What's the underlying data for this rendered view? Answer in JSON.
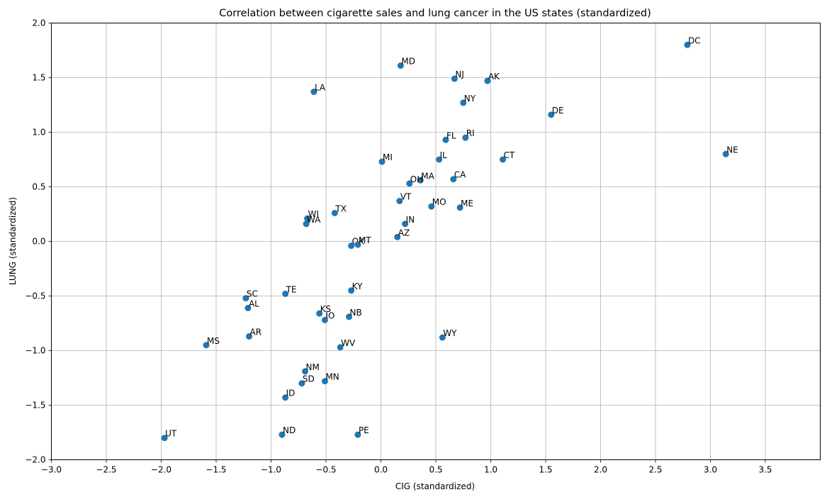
{
  "chart_data": {
    "type": "scatter",
    "title": "Correlation between cigarette sales and lung cancer in the US states (standardized)",
    "xlabel": "CIG (standardized)",
    "ylabel": "LUNG (standardized)",
    "xlim": [
      -3.0,
      4.0
    ],
    "ylim": [
      -2.0,
      2.0
    ],
    "xticks": [
      -3.0,
      -2.5,
      -2.0,
      -1.5,
      -1.0,
      -0.5,
      0.0,
      0.5,
      1.0,
      1.5,
      2.0,
      2.5,
      3.0,
      3.5
    ],
    "xtick_labels": [
      "−3.0",
      "−2.5",
      "−2.0",
      "−1.5",
      "−1.0",
      "−0.5",
      "0.0",
      "0.5",
      "1.0",
      "1.5",
      "2.0",
      "2.5",
      "3.0",
      "3.5"
    ],
    "yticks": [
      -2.0,
      -1.5,
      -1.0,
      -0.5,
      0.0,
      0.5,
      1.0,
      1.5,
      2.0
    ],
    "ytick_labels": [
      "−2.0",
      "−1.5",
      "−1.0",
      "−0.5",
      "0.0",
      "0.5",
      "1.0",
      "1.5",
      "2.0"
    ],
    "grid": true,
    "marker_color": "#1f77b4",
    "points": [
      {
        "label": "DC",
        "x": 2.79,
        "y": 1.8
      },
      {
        "label": "NE",
        "x": 3.14,
        "y": 0.8
      },
      {
        "label": "MD",
        "x": 0.18,
        "y": 1.61
      },
      {
        "label": "NJ",
        "x": 0.67,
        "y": 1.49
      },
      {
        "label": "AK",
        "x": 0.97,
        "y": 1.47
      },
      {
        "label": "LA",
        "x": -0.61,
        "y": 1.37
      },
      {
        "label": "NY",
        "x": 0.75,
        "y": 1.27
      },
      {
        "label": "DE",
        "x": 1.55,
        "y": 1.16
      },
      {
        "label": "FL",
        "x": 0.59,
        "y": 0.93
      },
      {
        "label": "RI",
        "x": 0.77,
        "y": 0.95
      },
      {
        "label": "CT",
        "x": 1.11,
        "y": 0.75
      },
      {
        "label": "MI",
        "x": 0.01,
        "y": 0.73
      },
      {
        "label": "IL",
        "x": 0.53,
        "y": 0.75
      },
      {
        "label": "MA",
        "x": 0.36,
        "y": 0.56
      },
      {
        "label": "CA",
        "x": 0.66,
        "y": 0.57
      },
      {
        "label": "OH",
        "x": 0.26,
        "y": 0.53
      },
      {
        "label": "VT",
        "x": 0.17,
        "y": 0.37
      },
      {
        "label": "MO",
        "x": 0.46,
        "y": 0.32
      },
      {
        "label": "ME",
        "x": 0.72,
        "y": 0.31
      },
      {
        "label": "TX",
        "x": -0.42,
        "y": 0.26
      },
      {
        "label": "WI",
        "x": -0.67,
        "y": 0.21
      },
      {
        "label": "WA",
        "x": -0.68,
        "y": 0.16
      },
      {
        "label": "IN",
        "x": 0.22,
        "y": 0.16
      },
      {
        "label": "AZ",
        "x": 0.15,
        "y": 0.04
      },
      {
        "label": "OK",
        "x": -0.27,
        "y": -0.04
      },
      {
        "label": "MT",
        "x": -0.21,
        "y": -0.03
      },
      {
        "label": "KY",
        "x": -0.27,
        "y": -0.45
      },
      {
        "label": "TE",
        "x": -0.87,
        "y": -0.48
      },
      {
        "label": "SC",
        "x": -1.23,
        "y": -0.52
      },
      {
        "label": "AL",
        "x": -1.21,
        "y": -0.61
      },
      {
        "label": "KS",
        "x": -0.56,
        "y": -0.66
      },
      {
        "label": "IO",
        "x": -0.51,
        "y": -0.72
      },
      {
        "label": "NB",
        "x": -0.29,
        "y": -0.69
      },
      {
        "label": "AR",
        "x": -1.2,
        "y": -0.87
      },
      {
        "label": "WY",
        "x": 0.56,
        "y": -0.88
      },
      {
        "label": "MS",
        "x": -1.59,
        "y": -0.95
      },
      {
        "label": "WV",
        "x": -0.37,
        "y": -0.97
      },
      {
        "label": "NM",
        "x": -0.69,
        "y": -1.19
      },
      {
        "label": "MN",
        "x": -0.51,
        "y": -1.28
      },
      {
        "label": "SD",
        "x": -0.72,
        "y": -1.3
      },
      {
        "label": "ID",
        "x": -0.87,
        "y": -1.43
      },
      {
        "label": "UT",
        "x": -1.97,
        "y": -1.8
      },
      {
        "label": "ND",
        "x": -0.9,
        "y": -1.77
      },
      {
        "label": "PE",
        "x": -0.21,
        "y": -1.77
      }
    ]
  }
}
